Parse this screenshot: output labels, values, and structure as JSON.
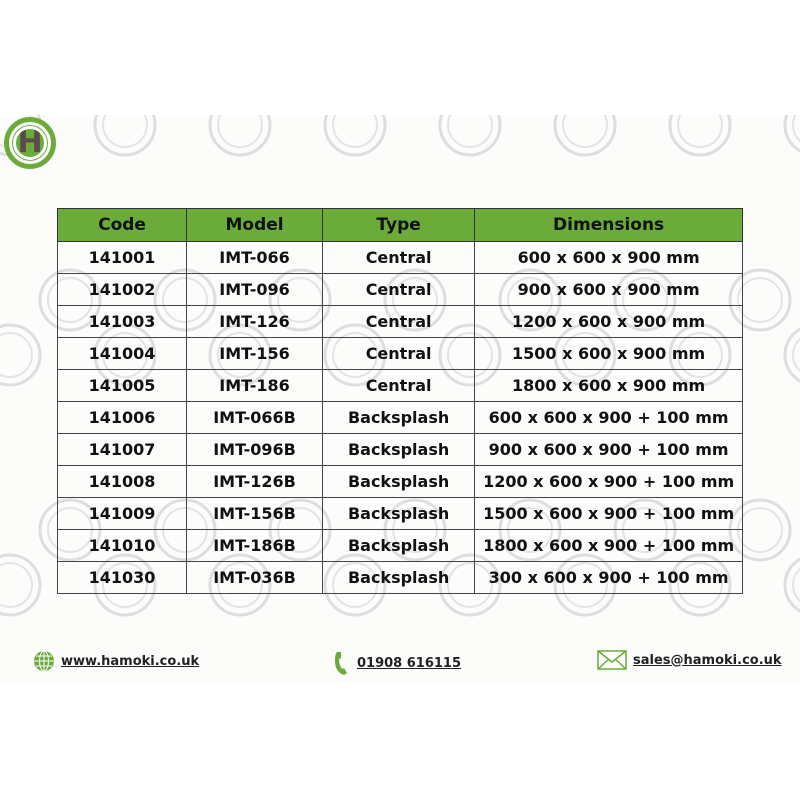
{
  "logo": {
    "letter": "H"
  },
  "table": {
    "headers": [
      "Code",
      "Model",
      "Type",
      "Dimensions"
    ],
    "rows": [
      [
        "141001",
        "IMT-066",
        "Central",
        "600 x 600 x 900 mm"
      ],
      [
        "141002",
        "IMT-096",
        "Central",
        "900 x 600 x 900 mm"
      ],
      [
        "141003",
        "IMT-126",
        "Central",
        "1200 x 600 x 900 mm"
      ],
      [
        "141004",
        "IMT-156",
        "Central",
        "1500 x 600 x 900 mm"
      ],
      [
        "141005",
        "IMT-186",
        "Central",
        "1800 x 600 x 900 mm"
      ],
      [
        "141006",
        "IMT-066B",
        "Backsplash",
        "600 x 600 x 900 + 100 mm"
      ],
      [
        "141007",
        "IMT-096B",
        "Backsplash",
        "900 x 600 x 900 + 100 mm"
      ],
      [
        "141008",
        "IMT-126B",
        "Backsplash",
        "1200 x 600 x 900 + 100 mm"
      ],
      [
        "141009",
        "IMT-156B",
        "Backsplash",
        "1500 x 600 x 900 + 100 mm"
      ],
      [
        "141010",
        "IMT-186B",
        "Backsplash",
        "1800 x 600 x 900 + 100 mm"
      ],
      [
        "141030",
        "IMT-036B",
        "Backsplash",
        "300 x 600 x 900 + 100 mm"
      ]
    ]
  },
  "footer": {
    "website": "www.hamoki.co.uk",
    "phone": "01908 616115",
    "email": "sales@hamoki.co.uk"
  },
  "colors": {
    "brand_green": "#6aab3a",
    "logo_letter": "#5c4b4b"
  }
}
